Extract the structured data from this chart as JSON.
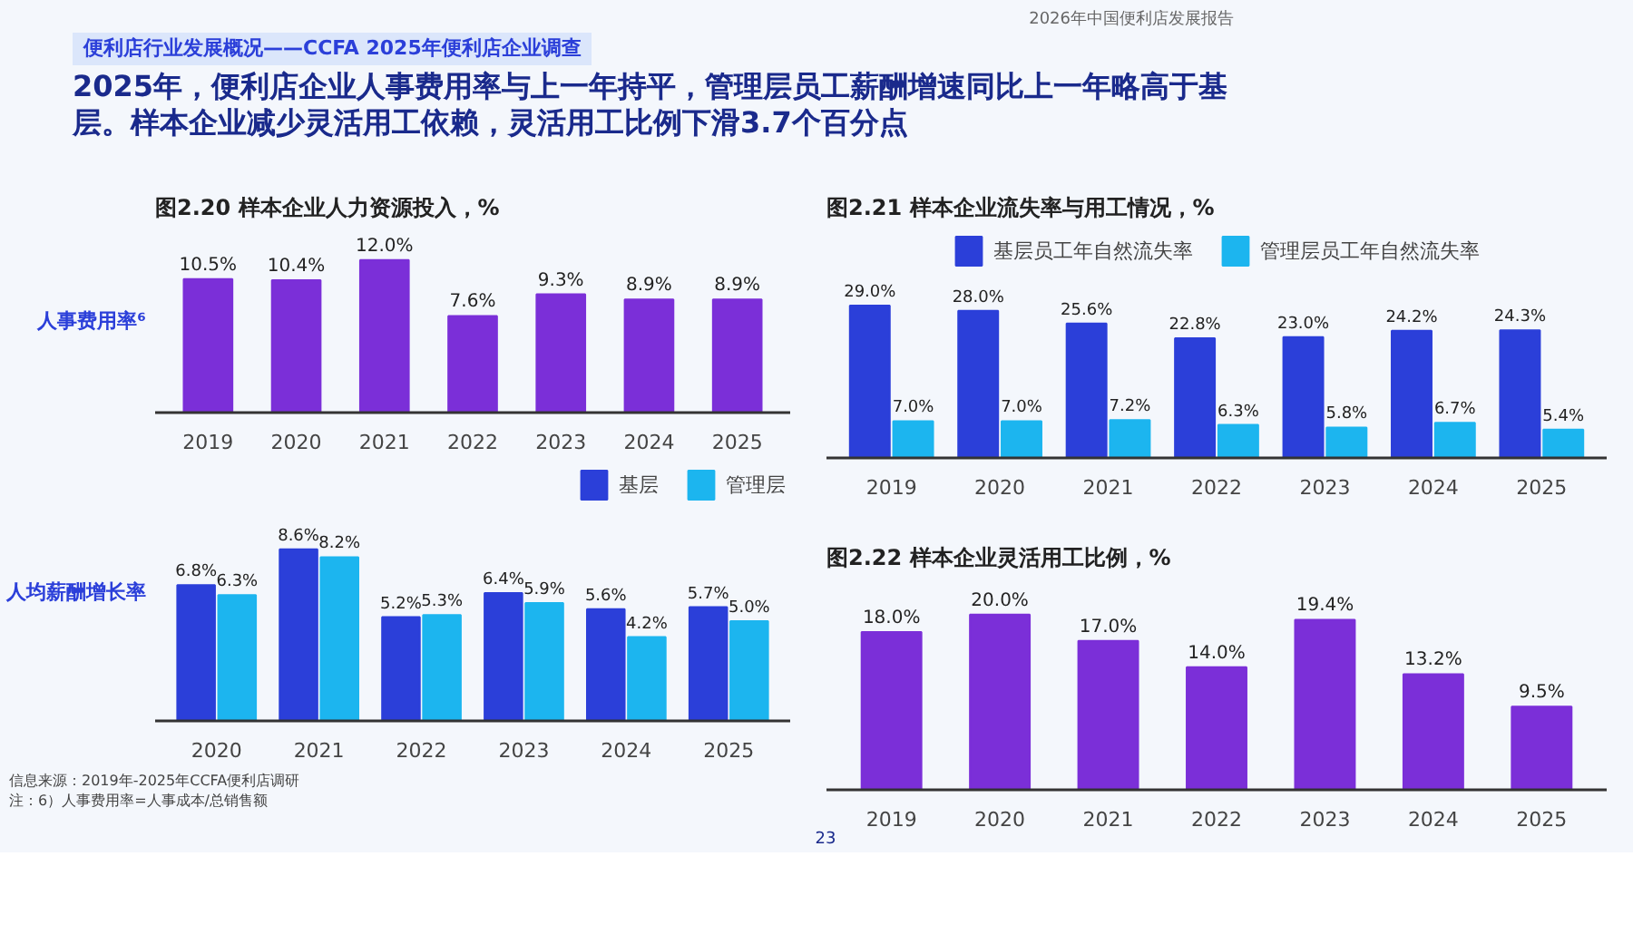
{
  "chart_data": [
    {
      "type": "bar",
      "title": "图2.20 样本企业人力资源投入，%",
      "ylabel": "人事费用率⁶",
      "categories": [
        "2019",
        "2020",
        "2021",
        "2022",
        "2023",
        "2024",
        "2025"
      ],
      "series": [
        {
          "color": "#7b2fd8",
          "values": [
            10.5,
            10.4,
            12.0,
            7.6,
            9.3,
            8.9,
            8.9
          ],
          "value_labels": [
            "10.5%",
            "10.4%",
            "12.0%",
            "7.6%",
            "9.3%",
            "8.9%",
            "8.9%"
          ]
        }
      ],
      "grid": false,
      "annotations": [
        "便利店行业发展概况——CCFA 2025年便利店企业调查",
        "2025年，便利店企业人事费用率与上一年持平，管理层员工薪酬增速同比上一年略高于基层。样本企业减少灵活用工依赖，灵活用工比例下滑3.7个百分点",
        "2026年中国便利店发展报告",
        "23"
      ]
    },
    {
      "type": "bar",
      "ylabel": "人均薪酬增长率",
      "categories": [
        "2020",
        "2021",
        "2022",
        "2023",
        "2024",
        "2025"
      ],
      "series": [
        {
          "name": "基层",
          "color": "#2b3fd9",
          "values": [
            6.8,
            8.6,
            5.2,
            6.4,
            5.6,
            5.7
          ],
          "value_labels": [
            "6.8%",
            "8.6%",
            "5.2%",
            "6.4%",
            "5.6%",
            "5.7%"
          ]
        },
        {
          "name": "管理层",
          "color": "#1cb5ef",
          "values": [
            6.3,
            8.2,
            5.3,
            5.9,
            4.2,
            5.0
          ],
          "value_labels": [
            "6.3%",
            "8.2%",
            "5.3%",
            "5.9%",
            "4.2%",
            "5.0%"
          ]
        }
      ],
      "legend": "top right",
      "grid": false,
      "annotations": [
        "信息来源：2019年-2025年CCFA便利店调研",
        "注：6）人事费用率=人事成本/总销售额"
      ]
    },
    {
      "type": "bar",
      "title": "图2.21 样本企业流失率与用工情况，%",
      "categories": [
        "2019",
        "2020",
        "2021",
        "2022",
        "2023",
        "2024",
        "2025"
      ],
      "series": [
        {
          "name": "基层员工年自然流失率",
          "color": "#2b3fd9",
          "values": [
            29.0,
            28.0,
            25.6,
            22.8,
            23.0,
            24.2,
            24.3
          ],
          "value_labels": [
            "29.0%",
            "28.0%",
            "25.6%",
            "22.8%",
            "23.0%",
            "24.2%",
            "24.3%"
          ]
        },
        {
          "name": "管理层员工年自然流失率",
          "color": "#1cb5ef",
          "values": [
            7.0,
            7.0,
            7.2,
            6.3,
            5.8,
            6.7,
            5.4
          ],
          "value_labels": [
            "7.0%",
            "7.0%",
            "7.2%",
            "6.3%",
            "5.8%",
            "6.7%",
            "5.4%"
          ]
        }
      ],
      "legend": "top",
      "grid": false
    },
    {
      "type": "bar",
      "title": "图2.22 样本企业灵活用工比例，%",
      "categories": [
        "2019",
        "2020",
        "2021",
        "2022",
        "2023",
        "2024",
        "2025"
      ],
      "series": [
        {
          "color": "#7b2fd8",
          "values": [
            18.0,
            20.0,
            17.0,
            14.0,
            19.4,
            13.2,
            9.5
          ],
          "value_labels": [
            "18.0%",
            "20.0%",
            "17.0%",
            "14.0%",
            "19.4%",
            "13.2%",
            "9.5%"
          ]
        }
      ],
      "grid": false
    }
  ]
}
